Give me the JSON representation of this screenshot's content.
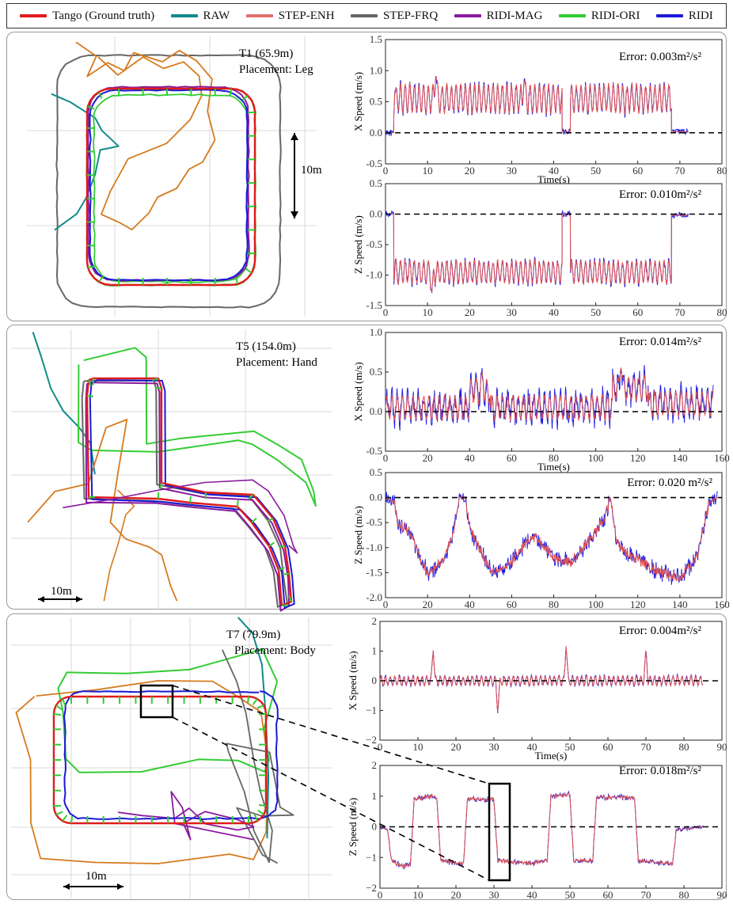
{
  "legend": [
    {
      "label": "Tango (Ground truth)",
      "color": "#e01b1b"
    },
    {
      "label": "RAW",
      "color": "#138a8a"
    },
    {
      "label": "STEP-ENH",
      "color": "#e07070"
    },
    {
      "label": "STEP-FRQ",
      "color": "#666666"
    },
    {
      "label": "RIDI-MAG",
      "color": "#8a1a9e"
    },
    {
      "label": "RIDI-ORI",
      "color": "#33cc33"
    },
    {
      "label": "RIDI",
      "color": "#1a1ad6"
    }
  ],
  "colors": {
    "tango": "#e01b1b",
    "raw": "#138a8a",
    "step_enh": "#e07070",
    "step_frq": "#666666",
    "ridi_mag": "#8a1a9e",
    "ridi_ori": "#33cc33",
    "ridi": "#1a1ad6",
    "orange": "#d67a1e",
    "grid": "#d8d8d8",
    "speed_gt": "#e05050",
    "speed_pred": "#2020e0"
  },
  "panels": [
    {
      "title": "T1 (65.9m)",
      "placement": "Placement: Leg",
      "scale_label": "10m",
      "error_x": "Error: 0.003m²/s²",
      "error_z": "Error: 0.010m²/s²"
    },
    {
      "title": "T5 (154.0m)",
      "placement": "Placement: Hand",
      "scale_label": "10m",
      "error_x": "Error: 0.014m²/s²",
      "error_z": "Error: 0.020 m²/s²"
    },
    {
      "title": "T7 (79.9m)",
      "placement": "Placement: Body",
      "scale_label": "10m",
      "error_x": "Error: 0.004m²/s²",
      "error_z": "Error: 0.018m²/s²"
    }
  ],
  "chart_data": [
    {
      "type": "line",
      "ylabel": "X Speed (m/s)",
      "xlabel": "Time(s)",
      "xlim": [
        0,
        80
      ],
      "ylim": [
        -0.5,
        1.5
      ],
      "xticks": [
        0,
        10,
        20,
        30,
        40,
        50,
        60,
        70,
        80
      ],
      "yticks": [
        "-0.5",
        "0.0",
        "0.5",
        "1.0",
        "1.5"
      ],
      "ytick_values": [
        -0.5,
        0.0,
        0.5,
        1.0,
        1.5
      ],
      "zero_line": 0,
      "segments": [
        {
          "t": [
            0,
            2
          ],
          "v": 0.0
        },
        {
          "t": [
            2,
            42
          ],
          "v": 0.55,
          "amp": 0.22,
          "period": 1.1
        },
        {
          "t": [
            42,
            44
          ],
          "v": 0.02
        },
        {
          "t": [
            44,
            68
          ],
          "v": 0.55,
          "amp": 0.22,
          "period": 1.1
        },
        {
          "t": [
            68,
            72
          ],
          "v": 0.02
        }
      ],
      "peaks": [
        [
          12,
          0.95
        ],
        [
          33,
          0.85
        ]
      ]
    },
    {
      "type": "line",
      "ylabel": "Z Speed (m/s)",
      "xlabel": "",
      "xlim": [
        0,
        80
      ],
      "ylim": [
        -1.5,
        0.5
      ],
      "xticks": [
        0,
        10,
        20,
        30,
        40,
        50,
        60,
        70,
        80
      ],
      "yticks": [
        "-1.5",
        "-1.0",
        "-0.5",
        "0.0",
        "0.5"
      ],
      "ytick_values": [
        -1.5,
        -1.0,
        -0.5,
        0.0,
        0.5
      ],
      "zero_line": 0,
      "segments": [
        {
          "t": [
            0,
            2
          ],
          "v": 0.0
        },
        {
          "t": [
            2,
            42
          ],
          "v": -0.95,
          "amp": 0.18,
          "period": 1.1
        },
        {
          "t": [
            42,
            44
          ],
          "v": 0.0
        },
        {
          "t": [
            44,
            68
          ],
          "v": -0.95,
          "amp": 0.18,
          "period": 1.1
        },
        {
          "t": [
            68,
            72
          ],
          "v": -0.02
        }
      ],
      "peaks": [
        [
          11,
          -1.3
        ]
      ]
    },
    {
      "type": "line",
      "ylabel": "X Speed (m/s)",
      "xlabel": "Time(s)",
      "xlim": [
        0,
        160
      ],
      "ylim": [
        -0.5,
        1.0
      ],
      "xticks": [
        0,
        20,
        40,
        60,
        80,
        100,
        120,
        140,
        160
      ],
      "yticks": [
        "-0.5",
        "0.0",
        "0.5",
        "1.0"
      ],
      "ytick_values": [
        -0.5,
        0.0,
        0.5,
        1.0
      ],
      "zero_line": 0,
      "segments": [
        {
          "t": [
            0,
            40
          ],
          "v": 0.05,
          "amp": 0.15,
          "period": 2.5
        },
        {
          "t": [
            40,
            50
          ],
          "v": 0.25,
          "amp": 0.15,
          "period": 2.5
        },
        {
          "t": [
            50,
            108
          ],
          "v": 0.05,
          "amp": 0.15,
          "period": 2.5
        },
        {
          "t": [
            108,
            125
          ],
          "v": 0.3,
          "amp": 0.15,
          "period": 2.5
        },
        {
          "t": [
            125,
            156
          ],
          "v": 0.1,
          "amp": 0.15,
          "period": 2.5
        }
      ],
      "peaks": [
        [
          46,
          0.5
        ],
        [
          112,
          0.6
        ]
      ]
    },
    {
      "type": "line",
      "ylabel": "Z Speed (m/s)",
      "xlabel": "",
      "xlim": [
        0,
        160
      ],
      "ylim": [
        -2.0,
        0.5
      ],
      "xticks": [
        0,
        20,
        40,
        60,
        80,
        100,
        120,
        140,
        160
      ],
      "yticks": [
        "-2.0",
        "-1.5",
        "-1.0",
        "-0.5",
        "0.0",
        "0.5"
      ],
      "ytick_values": [
        -2.0,
        -1.5,
        -1.0,
        -0.5,
        0.0,
        0.5
      ],
      "zero_line": 0,
      "keypoints": [
        [
          0,
          0
        ],
        [
          4,
          -0.1
        ],
        [
          6,
          -0.5
        ],
        [
          12,
          -0.7
        ],
        [
          20,
          -1.55
        ],
        [
          28,
          -1.2
        ],
        [
          33,
          -0.6
        ],
        [
          35,
          0
        ],
        [
          38,
          0
        ],
        [
          40,
          -0.6
        ],
        [
          50,
          -1.45
        ],
        [
          58,
          -1.4
        ],
        [
          68,
          -0.85
        ],
        [
          72,
          -0.8
        ],
        [
          80,
          -1.2
        ],
        [
          88,
          -1.3
        ],
        [
          96,
          -0.9
        ],
        [
          104,
          -0.45
        ],
        [
          107,
          0
        ],
        [
          110,
          -0.9
        ],
        [
          118,
          -1.2
        ],
        [
          130,
          -1.5
        ],
        [
          140,
          -1.6
        ],
        [
          148,
          -1.2
        ],
        [
          154,
          -0.1
        ],
        [
          158,
          0
        ]
      ],
      "noise": 0.1
    },
    {
      "type": "line",
      "ylabel": "X Speed (m/s)",
      "xlabel": "Time(s)",
      "xlim": [
        0,
        90
      ],
      "ylim": [
        -2,
        2
      ],
      "xticks": [
        0,
        10,
        20,
        30,
        40,
        50,
        60,
        70,
        80,
        90
      ],
      "yticks": [
        "−2",
        "−1",
        "0",
        "1",
        "2"
      ],
      "ytick_values": [
        -2,
        -1,
        0,
        1,
        2
      ],
      "zero_line": 0,
      "segments": [
        {
          "t": [
            0,
            85
          ],
          "v": 0.0,
          "amp": 0.15,
          "period": 1.2
        }
      ],
      "peaks": [
        [
          14,
          1.05
        ],
        [
          31,
          -1.1
        ],
        [
          49,
          1.2
        ],
        [
          70,
          1.1
        ]
      ]
    },
    {
      "type": "line",
      "ylabel": "Z Speed (m/s)",
      "xlabel": "",
      "xlim": [
        0,
        90
      ],
      "ylim": [
        -2,
        2
      ],
      "xticks": [
        0,
        10,
        20,
        30,
        40,
        50,
        60,
        70,
        80,
        90
      ],
      "yticks": [
        "−2",
        "−1",
        "0",
        "1",
        "2"
      ],
      "ytick_values": [
        -2,
        -1,
        0,
        1,
        2
      ],
      "zero_line": 0,
      "keypoints": [
        [
          0,
          0
        ],
        [
          2,
          -0.1
        ],
        [
          3,
          -1.1
        ],
        [
          6,
          -1.3
        ],
        [
          8,
          -1.2
        ],
        [
          9,
          0.9
        ],
        [
          14,
          1.0
        ],
        [
          15,
          0.9
        ],
        [
          16,
          -1.1
        ],
        [
          22,
          -1.2
        ],
        [
          23,
          0.9
        ],
        [
          30,
          0.9
        ],
        [
          31,
          -1.1
        ],
        [
          40,
          -1.2
        ],
        [
          44,
          -1.1
        ],
        [
          45,
          1.0
        ],
        [
          50,
          1.05
        ],
        [
          51,
          -1.1
        ],
        [
          56,
          -1.1
        ],
        [
          57,
          0.95
        ],
        [
          67,
          0.95
        ],
        [
          68,
          -1.1
        ],
        [
          77,
          -1.2
        ],
        [
          78,
          -0.1
        ],
        [
          85,
          0
        ]
      ],
      "noise": 0.06
    }
  ]
}
